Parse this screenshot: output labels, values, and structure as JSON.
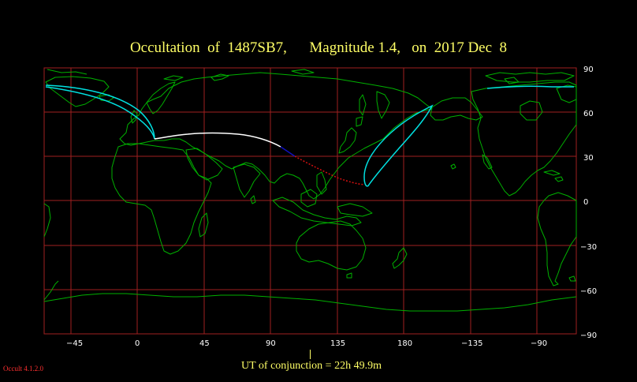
{
  "title": "Occultation  of  1487SB7,      Magnitude 1.4,   on  2017 Dec  8",
  "lon_ticks": [
    "−45",
    "0",
    "45",
    "90",
    "135",
    "180",
    "−135",
    "−90"
  ],
  "lat_ticks": [
    "90",
    "60",
    "30",
    "0",
    "−30",
    "−60",
    "−90"
  ],
  "ut_label": "UT of conjunction = 22h 49.9m",
  "version": "Occult 4.1.2.0",
  "colors": {
    "grid": "#a02020",
    "frame": "#a02020",
    "land": "#00b000",
    "central_path_day": "#ffffff",
    "central_path_twilight": "#1010c0",
    "central_path_night": "#d01010",
    "path_limits": "#00e0e0",
    "text": "#ffff66"
  }
}
